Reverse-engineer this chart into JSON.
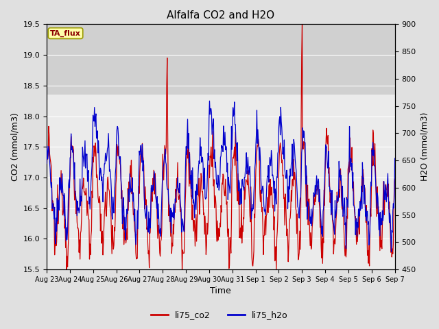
{
  "title": "Alfalfa CO2 and H2O",
  "xlabel": "Time",
  "ylabel_left": "CO2 (mmol/m3)",
  "ylabel_right": "H2O (mmol/m3)",
  "ylim_left": [
    15.5,
    19.5
  ],
  "ylim_right": [
    450,
    900
  ],
  "annotation": "TA_flux",
  "legend": [
    "li75_co2",
    "li75_h2o"
  ],
  "bg_color": "#e0e0e0",
  "plot_bg": "#ebebeb",
  "plot_bg_upper": "#dcdcdc",
  "red_color": "#cc0000",
  "blue_color": "#0000cc",
  "xtick_labels": [
    "Aug 23",
    "Aug 24",
    "Aug 25",
    "Aug 26",
    "Aug 27",
    "Aug 28",
    "Aug 29",
    "Aug 30",
    "Aug 31",
    "Sep 1",
    "Sep 2",
    "Sep 3",
    "Sep 4",
    "Sep 5",
    "Sep 6",
    "Sep 7"
  ],
  "num_points": 700,
  "seed": 12345
}
